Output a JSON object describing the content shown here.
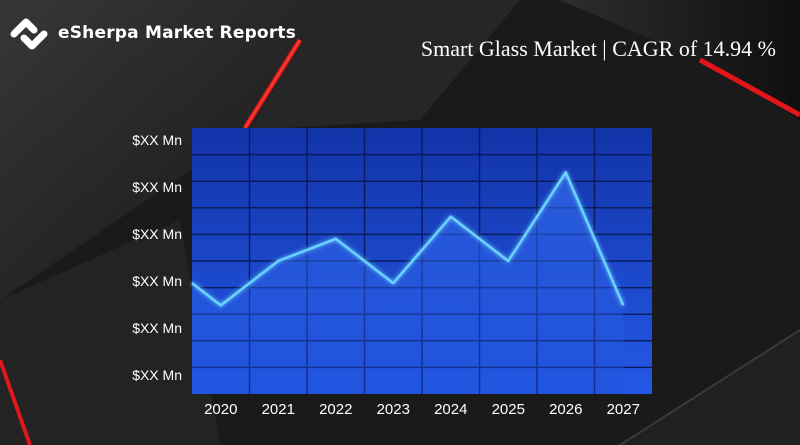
{
  "brand": {
    "name": "eSherpa Market Reports",
    "icon": "esherpa-logo-icon"
  },
  "headline": "Smart Glass Market | CAGR of 14.94 %",
  "colors": {
    "background": "#1c1c1c",
    "accent_red": "#e0161b",
    "plot_fill": "#1c4fd6",
    "line": "#6ad2ff",
    "text": "#ffffff"
  },
  "chart_data": {
    "type": "area",
    "title": "",
    "xlabel": "",
    "ylabel": "",
    "categories": [
      "2020",
      "2021",
      "2022",
      "2023",
      "2024",
      "2025",
      "2026",
      "2027"
    ],
    "y_tick_labels": [
      "$XX Mn",
      "$XX Mn",
      "$XX Mn",
      "$XX Mn",
      "$XX Mn",
      "$XX Mn"
    ],
    "ylim": [
      0,
      6
    ],
    "grid": true,
    "series": [
      {
        "x": [
          0,
          0.5,
          1.5,
          2.5,
          3.5,
          4.5,
          5.5,
          6.5,
          7.5
        ],
        "values": [
          2.5,
          2.0,
          3.0,
          3.5,
          2.5,
          4.0,
          3.0,
          5.0,
          2.0
        ]
      }
    ]
  }
}
